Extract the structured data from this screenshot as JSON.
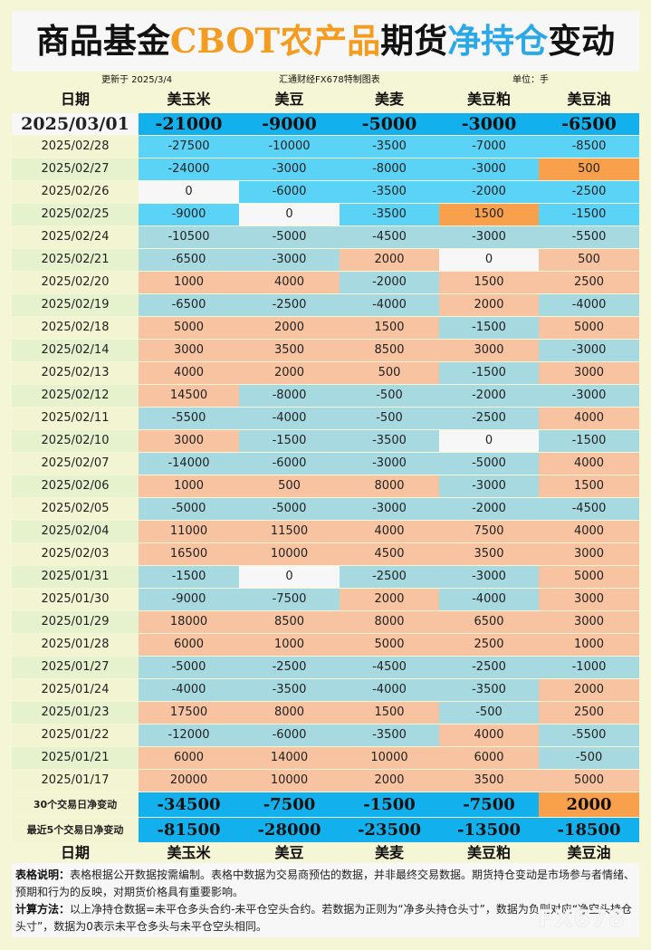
{
  "title": {
    "part1": "商品基金",
    "part2": "CBOT农产品",
    "part3": "期货",
    "part4": "净持仓",
    "part5": "变动"
  },
  "meta": {
    "updated": "更新于 2025/3/4",
    "source": "汇通财经FX678特制图表",
    "unit": "单位：手"
  },
  "headers": {
    "date": "日期",
    "cols": [
      "美玉米",
      "美豆",
      "美麦",
      "美豆粕",
      "美豆油"
    ]
  },
  "colors": {
    "blue_strong": "#12b0ec",
    "blue_mid": "#5bd3f6",
    "blue_light": "#a7d9e1",
    "orange_light": "#f7c3a1",
    "orange_strong": "#f8a04c",
    "white": "#f7f7f7",
    "date_light": "#f3f4d2",
    "date_alt": "#e6f2ce"
  },
  "chart_data": {
    "type": "table",
    "title": "商品基金CBOT农产品期货净持仓变动",
    "columns": [
      "美玉米",
      "美豆",
      "美麦",
      "美豆粕",
      "美豆油"
    ],
    "first_row": {
      "date": "2025/03/01",
      "values": [
        "-21000",
        "-9000",
        "-5000",
        "-3000",
        "-6500"
      ]
    },
    "rows": [
      {
        "date": "2025/02/28",
        "values": [
          "-27500",
          "-10000",
          "-3500",
          "-7000",
          "-8500"
        ]
      },
      {
        "date": "2025/02/27",
        "values": [
          "-24000",
          "-3000",
          "-8000",
          "-3000",
          "500"
        ]
      },
      {
        "date": "2025/02/26",
        "values": [
          "0",
          "-6000",
          "-3500",
          "-2000",
          "-2500"
        ]
      },
      {
        "date": "2025/02/25",
        "values": [
          "-9000",
          "0",
          "-3500",
          "1500",
          "-1500"
        ]
      },
      {
        "date": "2025/02/24",
        "values": [
          "-10500",
          "-5000",
          "-4500",
          "-3000",
          "-5500"
        ]
      },
      {
        "date": "2025/02/21",
        "values": [
          "-6500",
          "-3000",
          "2000",
          "0",
          "500"
        ]
      },
      {
        "date": "2025/02/20",
        "values": [
          "1000",
          "4000",
          "-2000",
          "1500",
          "2500"
        ]
      },
      {
        "date": "2025/02/19",
        "values": [
          "-6500",
          "-2500",
          "-4000",
          "2000",
          "-4000"
        ]
      },
      {
        "date": "2025/02/18",
        "values": [
          "5000",
          "2000",
          "1500",
          "-1500",
          "5000"
        ]
      },
      {
        "date": "2025/02/14",
        "values": [
          "3000",
          "3500",
          "8500",
          "3000",
          "-3000"
        ]
      },
      {
        "date": "2025/02/13",
        "values": [
          "4000",
          "2000",
          "500",
          "-1500",
          "3000"
        ]
      },
      {
        "date": "2025/02/12",
        "values": [
          "14500",
          "-8000",
          "-500",
          "-2000",
          "-3000"
        ]
      },
      {
        "date": "2025/02/11",
        "values": [
          "-5500",
          "-4000",
          "-500",
          "-2500",
          "4000"
        ]
      },
      {
        "date": "2025/02/10",
        "values": [
          "3000",
          "-1500",
          "-3500",
          "0",
          "-1500"
        ]
      },
      {
        "date": "2025/02/07",
        "values": [
          "-14000",
          "-6000",
          "-3000",
          "-5000",
          "4000"
        ]
      },
      {
        "date": "2025/02/06",
        "values": [
          "1000",
          "500",
          "8000",
          "-3000",
          "1500"
        ]
      },
      {
        "date": "2025/02/05",
        "values": [
          "-5000",
          "-5000",
          "-3000",
          "-2000",
          "-4500"
        ]
      },
      {
        "date": "2025/02/04",
        "values": [
          "11000",
          "11500",
          "4000",
          "7500",
          "4000"
        ]
      },
      {
        "date": "2025/02/03",
        "values": [
          "16500",
          "10000",
          "4500",
          "3500",
          "3000"
        ]
      },
      {
        "date": "2025/01/31",
        "values": [
          "-1500",
          "0",
          "-2500",
          "-3000",
          "5000"
        ]
      },
      {
        "date": "2025/01/30",
        "values": [
          "-9000",
          "-7500",
          "2000",
          "-4000",
          "3000"
        ]
      },
      {
        "date": "2025/01/29",
        "values": [
          "18000",
          "8500",
          "8000",
          "6500",
          "3000"
        ]
      },
      {
        "date": "2025/01/28",
        "values": [
          "6000",
          "1000",
          "5000",
          "2500",
          "1000"
        ]
      },
      {
        "date": "2025/01/27",
        "values": [
          "-5000",
          "-2500",
          "-4500",
          "-2500",
          "-1000"
        ]
      },
      {
        "date": "2025/01/24",
        "values": [
          "-4000",
          "-3500",
          "-4000",
          "-3500",
          "2000"
        ]
      },
      {
        "date": "2025/01/23",
        "values": [
          "17500",
          "8000",
          "1500",
          "-500",
          "2500"
        ]
      },
      {
        "date": "2025/01/22",
        "values": [
          "-12000",
          "-6000",
          "-3500",
          "4000",
          "-5500"
        ]
      },
      {
        "date": "2025/01/21",
        "values": [
          "6000",
          "14000",
          "10000",
          "6000",
          "-500"
        ]
      },
      {
        "date": "2025/01/17",
        "values": [
          "20000",
          "10000",
          "2000",
          "3500",
          "5000"
        ]
      }
    ],
    "summary": [
      {
        "label": "30个交易日净变动",
        "values": [
          "-34500",
          "-7500",
          "-1500",
          "-7500",
          "2000"
        ]
      },
      {
        "label": "最近5个交易日净变动",
        "values": [
          "-81500",
          "-28000",
          "-23500",
          "-13500",
          "-18500"
        ]
      }
    ]
  },
  "cell_styles": {
    "first_row": [
      "bs",
      "bs",
      "bs",
      "bs",
      "bs"
    ],
    "rows": [
      [
        "bm",
        "bm",
        "bm",
        "bm",
        "bm"
      ],
      [
        "bm",
        "bm",
        "bm",
        "bm",
        "os"
      ],
      [
        "w",
        "bm",
        "bm",
        "bm",
        "bm"
      ],
      [
        "bm",
        "w",
        "bm",
        "os",
        "bm"
      ],
      [
        "bl",
        "bl",
        "bl",
        "bl",
        "bl"
      ],
      [
        "bl",
        "bl",
        "ol",
        "w",
        "ol"
      ],
      [
        "ol",
        "ol",
        "bl",
        "ol",
        "ol"
      ],
      [
        "bl",
        "bl",
        "bl",
        "ol",
        "bl"
      ],
      [
        "ol",
        "ol",
        "ol",
        "bl",
        "ol"
      ],
      [
        "ol",
        "ol",
        "ol",
        "ol",
        "bl"
      ],
      [
        "ol",
        "ol",
        "ol",
        "bl",
        "ol"
      ],
      [
        "ol",
        "bl",
        "bl",
        "bl",
        "bl"
      ],
      [
        "bl",
        "bl",
        "bl",
        "bl",
        "ol"
      ],
      [
        "ol",
        "bl",
        "bl",
        "w",
        "bl"
      ],
      [
        "bl",
        "bl",
        "bl",
        "bl",
        "ol"
      ],
      [
        "ol",
        "ol",
        "ol",
        "bl",
        "ol"
      ],
      [
        "bl",
        "bl",
        "bl",
        "bl",
        "bl"
      ],
      [
        "ol",
        "ol",
        "ol",
        "ol",
        "ol"
      ],
      [
        "ol",
        "ol",
        "ol",
        "ol",
        "ol"
      ],
      [
        "bl",
        "w",
        "bl",
        "bl",
        "ol"
      ],
      [
        "bl",
        "bl",
        "ol",
        "bl",
        "ol"
      ],
      [
        "ol",
        "ol",
        "ol",
        "ol",
        "ol"
      ],
      [
        "ol",
        "ol",
        "ol",
        "ol",
        "ol"
      ],
      [
        "bl",
        "bl",
        "bl",
        "bl",
        "bl"
      ],
      [
        "bl",
        "bl",
        "bl",
        "bl",
        "ol"
      ],
      [
        "ol",
        "ol",
        "ol",
        "bl",
        "ol"
      ],
      [
        "bl",
        "bl",
        "bl",
        "ol",
        "bl"
      ],
      [
        "ol",
        "ol",
        "ol",
        "ol",
        "bl"
      ],
      [
        "ol",
        "ol",
        "ol",
        "ol",
        "ol"
      ]
    ],
    "summary": [
      [
        "bs",
        "bs",
        "bs",
        "bs",
        "os"
      ],
      [
        "bs",
        "bs",
        "bs",
        "bs",
        "bs"
      ]
    ]
  },
  "footer_headers": {
    "date": "日期",
    "cols": [
      "美玉米",
      "美豆",
      "美麦",
      "美豆粕",
      "美豆油"
    ]
  },
  "notes": {
    "label1": "表格说明：",
    "text1": "表格根据公开数据按需编制。表格中数据为交易商预估的数据，并非最终交易数据。期货持仓变动是市场参与者情绪、预期和行为的反映，对期货价格具有重要影响。",
    "label2": "计算方法：",
    "text2": "以上净持仓数据=未平仓多头合约-未平仓空头合约。若数据为正则为“净多头持仓头寸”，数据为负则对应“净空头持仓头寸”，数据为0表示未平仓多头与未平仓空头相同。"
  },
  "watermark": "FX678"
}
